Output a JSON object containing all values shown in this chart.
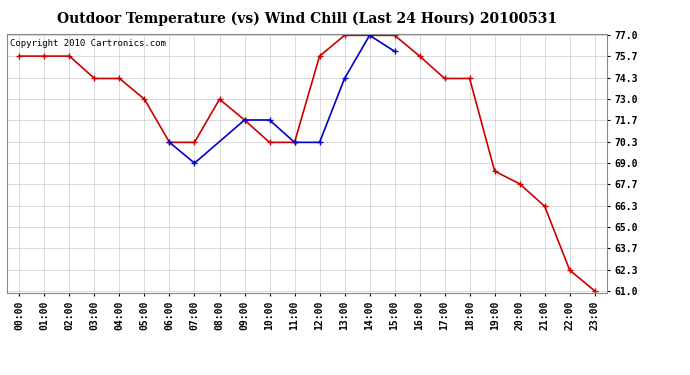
{
  "title": "Outdoor Temperature (vs) Wind Chill (Last 24 Hours) 20100531",
  "copyright_text": "Copyright 2010 Cartronics.com",
  "x_labels": [
    "00:00",
    "01:00",
    "02:00",
    "03:00",
    "04:00",
    "05:00",
    "06:00",
    "07:00",
    "08:00",
    "09:00",
    "10:00",
    "11:00",
    "12:00",
    "13:00",
    "14:00",
    "15:00",
    "16:00",
    "17:00",
    "18:00",
    "19:00",
    "20:00",
    "21:00",
    "22:00",
    "23:00"
  ],
  "temp_data": [
    75.7,
    75.7,
    75.7,
    74.3,
    74.3,
    73.0,
    70.3,
    70.3,
    73.0,
    71.7,
    70.3,
    70.3,
    75.7,
    77.0,
    77.0,
    77.0,
    75.7,
    74.3,
    74.3,
    68.5,
    67.7,
    66.3,
    62.3,
    61.0
  ],
  "wind_chill_data": [
    null,
    null,
    null,
    null,
    null,
    null,
    70.3,
    69.0,
    null,
    71.7,
    71.7,
    70.3,
    70.3,
    74.3,
    77.0,
    76.0,
    null,
    null,
    null,
    null,
    null,
    null,
    null,
    null
  ],
  "ylim_min": 61.0,
  "ylim_max": 77.0,
  "yticks": [
    61.0,
    62.3,
    63.7,
    65.0,
    66.3,
    67.7,
    69.0,
    70.3,
    71.7,
    73.0,
    74.3,
    75.7,
    77.0
  ],
  "temp_color": "#cc0000",
  "wind_chill_color": "#0000cc",
  "marker_size": 3,
  "grid_color": "#cccccc",
  "bg_color": "#ffffff",
  "title_fontsize": 10,
  "tick_fontsize": 7,
  "copyright_fontsize": 6.5
}
